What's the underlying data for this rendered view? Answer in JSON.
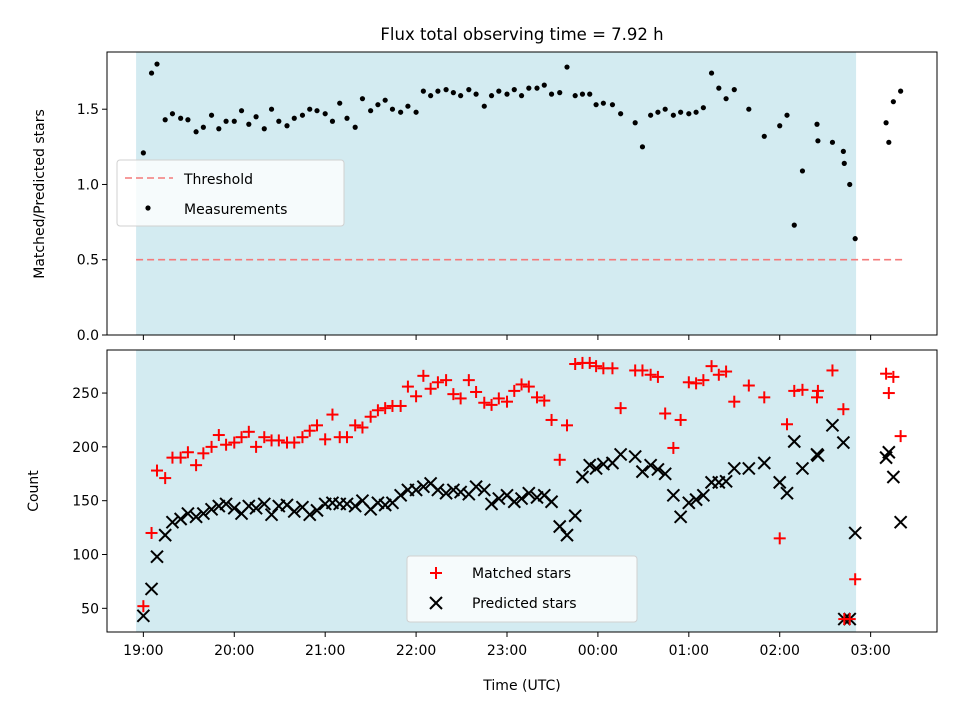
{
  "chart_data": [
    {
      "type": "scatter",
      "title": "Flux total observing time = 7.92 h",
      "ylabel": "Matched/Predicted stars",
      "xlim": [
        18.6,
        27.73
      ],
      "ylim": [
        0.0,
        1.88
      ],
      "yticks": [
        0.0,
        0.5,
        1.0,
        1.5
      ],
      "ytick_labels": [
        "0.0",
        "0.5",
        "1.0",
        "1.5"
      ],
      "shade_span": [
        18.92,
        26.84
      ],
      "shade_color": "#d3ebf1",
      "legend_placement": "center-left",
      "threshold": {
        "name": "Threshold",
        "value": 0.5,
        "x_range": [
          18.92,
          27.35
        ],
        "color": "#f47a7a"
      },
      "series": [
        {
          "name": "Measurements",
          "marker": "dot",
          "color": "#000000",
          "x": [
            19.0,
            19.09,
            19.15,
            19.24,
            19.32,
            19.41,
            19.49,
            19.58,
            19.66,
            19.75,
            19.83,
            19.91,
            20.0,
            20.08,
            20.16,
            20.24,
            20.33,
            20.41,
            20.49,
            20.58,
            20.66,
            20.75,
            20.83,
            20.91,
            21.0,
            21.08,
            21.16,
            21.24,
            21.33,
            21.41,
            21.5,
            21.58,
            21.66,
            21.74,
            21.83,
            21.91,
            22.0,
            22.08,
            22.16,
            22.24,
            22.33,
            22.41,
            22.49,
            22.58,
            22.66,
            22.75,
            22.83,
            22.91,
            23.0,
            23.08,
            23.16,
            23.24,
            23.33,
            23.41,
            23.49,
            23.58,
            23.66,
            23.75,
            23.83,
            23.91,
            23.98,
            24.06,
            24.16,
            24.25,
            24.41,
            24.49,
            24.58,
            24.66,
            24.74,
            24.83,
            24.91,
            25.0,
            25.08,
            25.16,
            25.25,
            25.33,
            25.41,
            25.5,
            25.66,
            25.83,
            26.0,
            26.08,
            26.16,
            26.25,
            26.41,
            26.42,
            26.58,
            26.7,
            26.71,
            26.77,
            26.83,
            27.17,
            27.2,
            27.25,
            27.33
          ],
          "y": [
            1.21,
            1.74,
            1.8,
            1.43,
            1.47,
            1.44,
            1.43,
            1.35,
            1.38,
            1.46,
            1.37,
            1.42,
            1.42,
            1.49,
            1.4,
            1.45,
            1.37,
            1.5,
            1.42,
            1.39,
            1.44,
            1.46,
            1.5,
            1.49,
            1.47,
            1.42,
            1.54,
            1.44,
            1.38,
            1.57,
            1.49,
            1.53,
            1.56,
            1.5,
            1.48,
            1.52,
            1.48,
            1.62,
            1.59,
            1.62,
            1.63,
            1.61,
            1.59,
            1.63,
            1.6,
            1.52,
            1.59,
            1.62,
            1.6,
            1.63,
            1.59,
            1.64,
            1.64,
            1.66,
            1.6,
            1.61,
            1.78,
            1.59,
            1.6,
            1.6,
            1.53,
            1.54,
            1.53,
            1.47,
            1.41,
            1.25,
            1.46,
            1.48,
            1.5,
            1.46,
            1.48,
            1.47,
            1.48,
            1.51,
            1.74,
            1.64,
            1.57,
            1.63,
            1.5,
            1.32,
            1.39,
            1.46,
            0.73,
            1.09,
            1.4,
            1.29,
            1.28,
            1.22,
            1.14,
            1.0,
            0.64,
            1.41,
            1.28,
            1.55,
            1.62
          ]
        }
      ]
    },
    {
      "type": "scatter",
      "ylabel": "Count",
      "xlabel": "Time (UTC)",
      "xlim": [
        18.6,
        27.73
      ],
      "ylim": [
        28,
        290
      ],
      "yticks": [
        50,
        100,
        150,
        200,
        250
      ],
      "ytick_labels": [
        "50",
        "100",
        "150",
        "200",
        "250"
      ],
      "xticks": [
        19,
        20,
        21,
        22,
        23,
        24,
        25,
        26,
        27
      ],
      "xtick_labels": [
        "19:00",
        "20:00",
        "21:00",
        "22:00",
        "23:00",
        "00:00",
        "01:00",
        "02:00",
        "03:00"
      ],
      "shade_span": [
        18.92,
        26.84
      ],
      "legend_placement": "lower-center",
      "series": [
        {
          "name": "Matched stars",
          "marker": "plus",
          "color": "#ff0000",
          "x": [
            19.0,
            19.09,
            19.15,
            19.24,
            19.32,
            19.41,
            19.49,
            19.58,
            19.66,
            19.75,
            19.83,
            19.91,
            20.0,
            20.08,
            20.16,
            20.24,
            20.33,
            20.41,
            20.49,
            20.58,
            20.66,
            20.75,
            20.83,
            20.91,
            21.0,
            21.08,
            21.16,
            21.24,
            21.33,
            21.41,
            21.5,
            21.58,
            21.66,
            21.74,
            21.83,
            21.91,
            22.0,
            22.08,
            22.16,
            22.24,
            22.33,
            22.41,
            22.49,
            22.58,
            22.66,
            22.75,
            22.83,
            22.91,
            23.0,
            23.08,
            23.16,
            23.24,
            23.33,
            23.41,
            23.49,
            23.58,
            23.66,
            23.75,
            23.83,
            23.91,
            23.98,
            24.06,
            24.16,
            24.25,
            24.41,
            24.49,
            24.58,
            24.66,
            24.74,
            24.83,
            24.91,
            25.0,
            25.08,
            25.16,
            25.25,
            25.33,
            25.41,
            25.5,
            25.66,
            25.83,
            26.0,
            26.08,
            26.16,
            26.25,
            26.41,
            26.42,
            26.58,
            26.7,
            26.71,
            26.77,
            26.83,
            27.17,
            27.2,
            27.25,
            27.33
          ],
          "y": [
            52,
            120,
            178,
            171,
            190,
            190,
            195,
            183,
            194,
            200,
            211,
            202,
            204,
            209,
            214,
            200,
            209,
            206,
            206,
            204,
            204,
            209,
            215,
            220,
            207,
            230,
            209,
            209,
            220,
            218,
            228,
            234,
            236,
            238,
            238,
            256,
            247,
            266,
            254,
            260,
            262,
            249,
            245,
            262,
            251,
            241,
            239,
            245,
            242,
            252,
            258,
            256,
            246,
            243,
            225,
            188,
            220,
            277,
            278,
            278,
            275,
            273,
            273,
            236,
            271,
            271,
            267,
            265,
            231,
            199,
            225,
            260,
            259,
            262,
            275,
            267,
            270,
            242,
            257,
            246,
            115,
            221,
            252,
            253,
            246,
            252,
            271,
            235,
            40,
            40,
            77,
            268,
            250,
            265,
            210
          ]
        },
        {
          "name": "Predicted stars",
          "marker": "x",
          "color": "#000000",
          "x": [
            19.0,
            19.09,
            19.15,
            19.24,
            19.32,
            19.41,
            19.49,
            19.58,
            19.66,
            19.75,
            19.83,
            19.91,
            20.0,
            20.08,
            20.16,
            20.24,
            20.33,
            20.41,
            20.49,
            20.58,
            20.66,
            20.75,
            20.83,
            20.91,
            21.0,
            21.08,
            21.16,
            21.24,
            21.33,
            21.41,
            21.5,
            21.58,
            21.66,
            21.74,
            21.83,
            21.91,
            22.0,
            22.08,
            22.16,
            22.24,
            22.33,
            22.41,
            22.49,
            22.58,
            22.66,
            22.75,
            22.83,
            22.91,
            23.0,
            23.08,
            23.16,
            23.24,
            23.33,
            23.41,
            23.49,
            23.58,
            23.66,
            23.75,
            23.83,
            23.91,
            23.98,
            24.06,
            24.16,
            24.25,
            24.41,
            24.49,
            24.58,
            24.66,
            24.74,
            24.83,
            24.91,
            25.0,
            25.08,
            25.16,
            25.25,
            25.33,
            25.41,
            25.5,
            25.66,
            25.83,
            26.0,
            26.08,
            26.16,
            26.25,
            26.41,
            26.42,
            26.58,
            26.7,
            26.71,
            26.77,
            26.83,
            27.17,
            27.2,
            27.25,
            27.33
          ],
          "y": [
            43,
            68,
            98,
            118,
            130,
            133,
            138,
            135,
            138,
            142,
            145,
            147,
            143,
            138,
            145,
            143,
            147,
            137,
            145,
            146,
            140,
            144,
            137,
            141,
            147,
            148,
            147,
            147,
            145,
            150,
            142,
            148,
            146,
            148,
            155,
            160,
            160,
            163,
            166,
            160,
            157,
            160,
            158,
            156,
            163,
            160,
            147,
            152,
            155,
            149,
            152,
            157,
            153,
            155,
            149,
            126,
            118,
            136,
            172,
            183,
            180,
            184,
            185,
            193,
            191,
            177,
            183,
            179,
            175,
            155,
            135,
            148,
            151,
            155,
            167,
            167,
            168,
            180,
            180,
            185,
            167,
            157,
            205,
            180,
            193,
            192,
            220,
            204,
            40,
            40,
            120,
            190,
            195,
            172,
            130
          ]
        }
      ]
    }
  ]
}
